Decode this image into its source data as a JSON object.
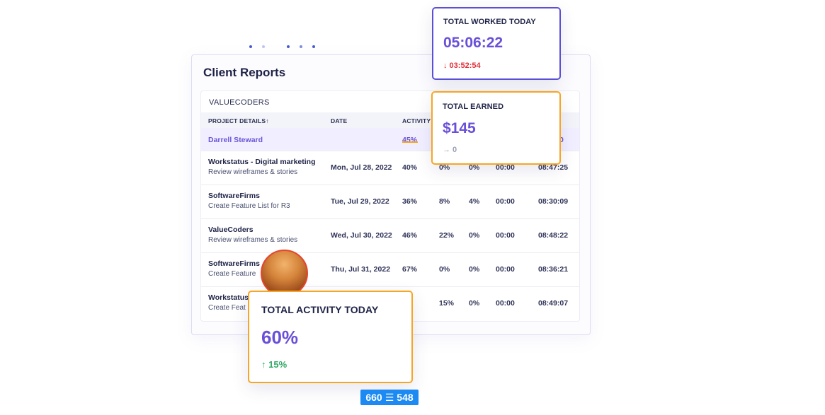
{
  "client_reports": {
    "title": "Client Reports",
    "company": "VALUECODERS",
    "columns": {
      "project": "PROJECT DETAILS↑",
      "date": "DATE",
      "activity": "ACTIVITY"
    },
    "highlight_row": {
      "name": "Darrell Steward",
      "activity": "45%",
      "last": "0"
    },
    "rows": [
      {
        "project": "Workstatus - Digital marketing",
        "task": "Review wireframes & stories",
        "date": "Mon, Jul 28, 2022",
        "activity": "40%",
        "c1": "0%",
        "c2": "0%",
        "c3": "00:00",
        "c4": "08:47:25"
      },
      {
        "project": "SoftwareFirms",
        "task": "Create Feature List for R3",
        "date": "Tue, Jul 29, 2022",
        "activity": "36%",
        "c1": "8%",
        "c2": "4%",
        "c3": "00:00",
        "c4": "08:30:09"
      },
      {
        "project": "ValueCoders",
        "task": "Review wireframes & stories",
        "date": "Wed, Jul 30, 2022",
        "activity": "46%",
        "c1": "22%",
        "c2": "0%",
        "c3": "00:00",
        "c4": "08:48:22"
      },
      {
        "project": "SoftwareFirms",
        "task": "Create Feature",
        "date": "Thu, Jul 31, 2022",
        "activity": "67%",
        "c1": "0%",
        "c2": "0%",
        "c3": "00:00",
        "c4": "08:36:21"
      },
      {
        "project": "Workstatus",
        "task": "Create Feat",
        "date": "",
        "activity": "%",
        "c1": "15%",
        "c2": "0%",
        "c3": "00:00",
        "c4": "08:49:07"
      }
    ]
  },
  "total_worked": {
    "label": "TOTAL WORKED TODAY",
    "value": "05:06:22",
    "change": "↓ 03:52:54"
  },
  "total_earned": {
    "label": "TOTAL EARNED",
    "value": "$145",
    "change": "→ 0"
  },
  "total_activity": {
    "label": "TOTAL ACTIVITY TODAY",
    "value": "60%",
    "change": "↑ 15%"
  },
  "dimension_badge": {
    "width": "660",
    "height": "548"
  },
  "colors": {
    "accent": "#6a4fd8",
    "orange": "#f6a623",
    "down": "#e0303a",
    "up": "#2fa866",
    "neutral": "#9aa0b4"
  }
}
